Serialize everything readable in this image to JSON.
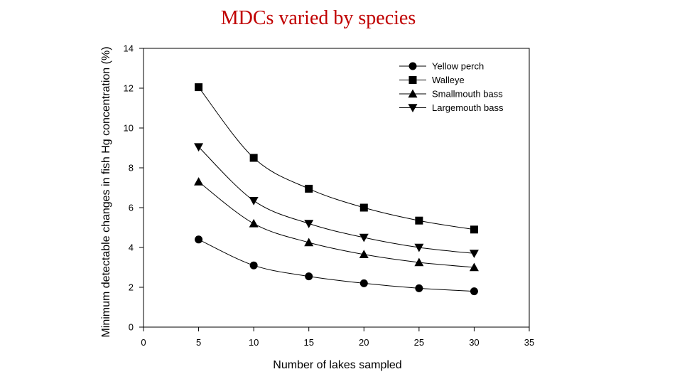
{
  "slide": {
    "title": "MDCs varied by species"
  },
  "chart_data": {
    "type": "line",
    "title": "",
    "xlabel": "Number of lakes sampled",
    "ylabel": "Minimum detectable changes in fish Hg concentration (%)",
    "xlim": [
      0,
      35
    ],
    "ylim": [
      0,
      14
    ],
    "xticks": [
      0,
      5,
      10,
      15,
      20,
      25,
      30,
      35
    ],
    "yticks": [
      0,
      2,
      4,
      6,
      8,
      10,
      12,
      14
    ],
    "grid": false,
    "legend": "top-right",
    "x": [
      5,
      10,
      15,
      20,
      25,
      30
    ],
    "series": [
      {
        "name": "Yellow perch",
        "marker": "circle",
        "values": [
          4.4,
          3.1,
          2.55,
          2.2,
          1.95,
          1.8
        ]
      },
      {
        "name": "Walleye",
        "marker": "square",
        "values": [
          12.05,
          8.5,
          6.95,
          6.0,
          5.35,
          4.9
        ]
      },
      {
        "name": "Smallmouth bass",
        "marker": "triangle-up",
        "values": [
          7.3,
          5.2,
          4.25,
          3.65,
          3.25,
          3.0
        ]
      },
      {
        "name": "Largemouth bass",
        "marker": "triangle-down",
        "values": [
          9.05,
          6.35,
          5.2,
          4.5,
          4.0,
          3.7
        ]
      }
    ]
  }
}
